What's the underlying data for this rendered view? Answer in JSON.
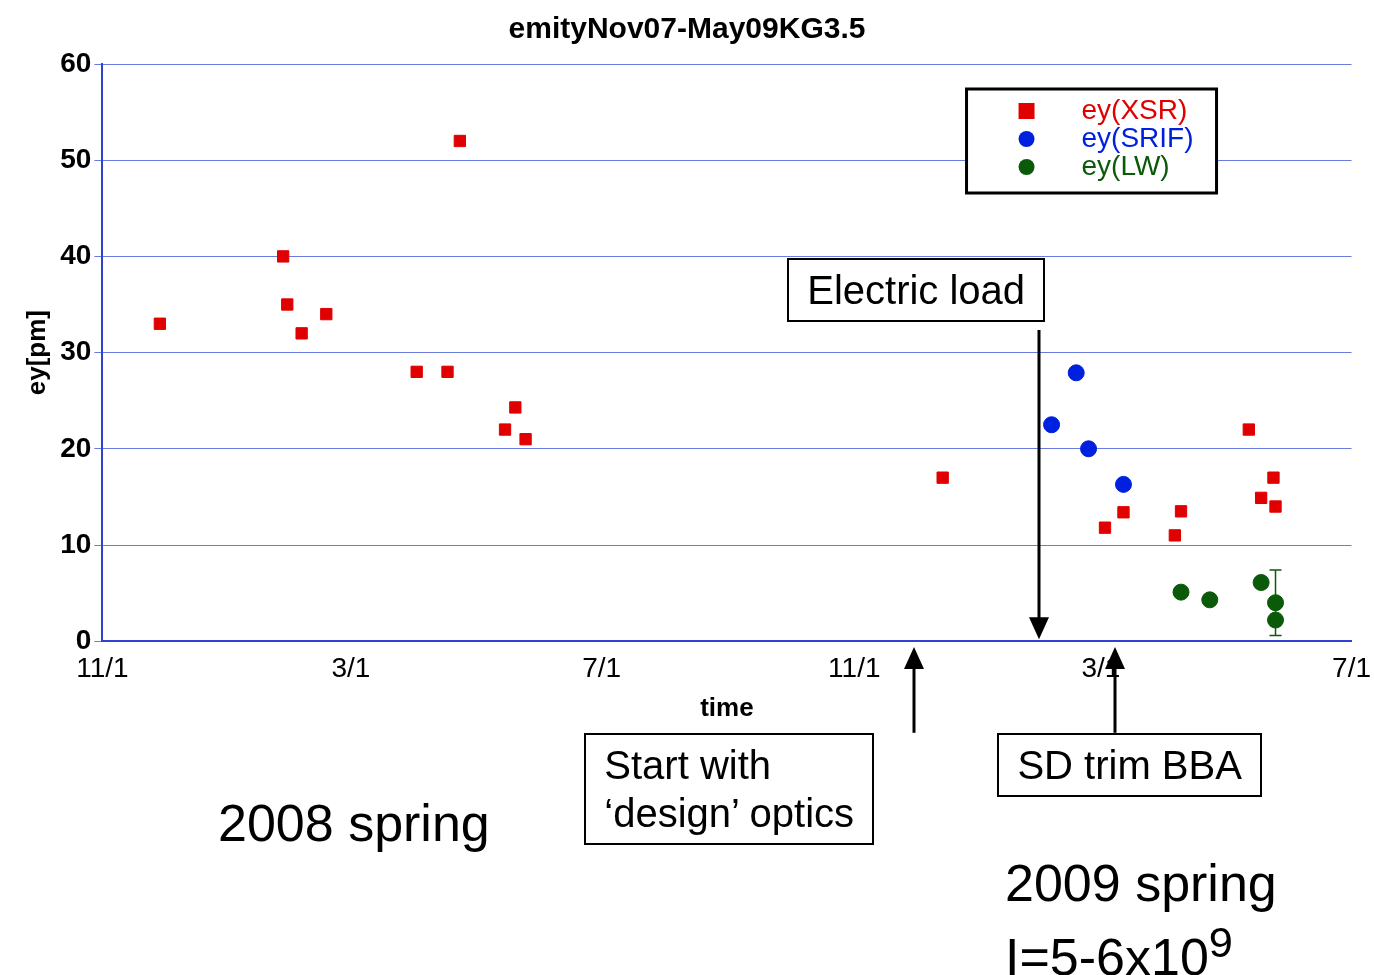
{
  "chart_data": {
    "type": "scatter",
    "title": "emityNov07-May09KG3.5",
    "xlabel": "time",
    "ylabel": "ey[pm]",
    "xlim": [
      "2007-11-01",
      "2009-07-01"
    ],
    "xticks": [
      {
        "value": "2007-11-01",
        "label": "11/1"
      },
      {
        "value": "2008-03-01",
        "label": "3/1"
      },
      {
        "value": "2008-07-01",
        "label": "7/1"
      },
      {
        "value": "2008-11-01",
        "label": "11/1"
      },
      {
        "value": "2009-03-01",
        "label": "3/1"
      },
      {
        "value": "2009-07-01",
        "label": "7/1"
      }
    ],
    "ylim": [
      0,
      60
    ],
    "yticks": [
      0,
      10,
      20,
      30,
      40,
      50,
      60
    ],
    "grid": "y",
    "legend": "top right",
    "series": [
      {
        "name": "ey(XSR)",
        "color": "#e00000",
        "marker": "square",
        "x": [
          "2007-11-29",
          "2008-01-28",
          "2008-01-30",
          "2008-02-06",
          "2008-02-18",
          "2008-04-02",
          "2008-04-17",
          "2008-04-23",
          "2008-05-15",
          "2008-05-20",
          "2008-05-25",
          "2008-12-14",
          "2009-03-03",
          "2009-03-12",
          "2009-04-06",
          "2009-04-09",
          "2009-05-12",
          "2009-05-18",
          "2009-05-24",
          "2009-05-25"
        ],
        "values": [
          33,
          40,
          35,
          32,
          34,
          28,
          28,
          52,
          22,
          24.3,
          21,
          17,
          11.8,
          13.4,
          11,
          13.5,
          22,
          14.9,
          17,
          14
        ]
      },
      {
        "name": "ey(SRIF)",
        "color": "#0020e0",
        "marker": "circle",
        "x": [
          "2009-02-05",
          "2009-02-17",
          "2009-02-23",
          "2009-03-12"
        ],
        "values": [
          22.5,
          27.9,
          20,
          16.3
        ]
      },
      {
        "name": "ey(LW)",
        "color": "#0a5a0a",
        "marker": "circle",
        "x": [
          "2009-04-09",
          "2009-04-23",
          "2009-05-18",
          "2009-05-25",
          "2009-05-25"
        ],
        "values": [
          5.1,
          4.3,
          6.1,
          4,
          2.2
        ],
        "errors": [
          null,
          null,
          null,
          3.4,
          null
        ]
      }
    ],
    "annotations": [
      "Electric load",
      "Start with\n‘design’ optics",
      "SD trim BBA",
      "2008 spring",
      "2009 spring",
      "I=5-6x10$^{9}$"
    ]
  }
}
